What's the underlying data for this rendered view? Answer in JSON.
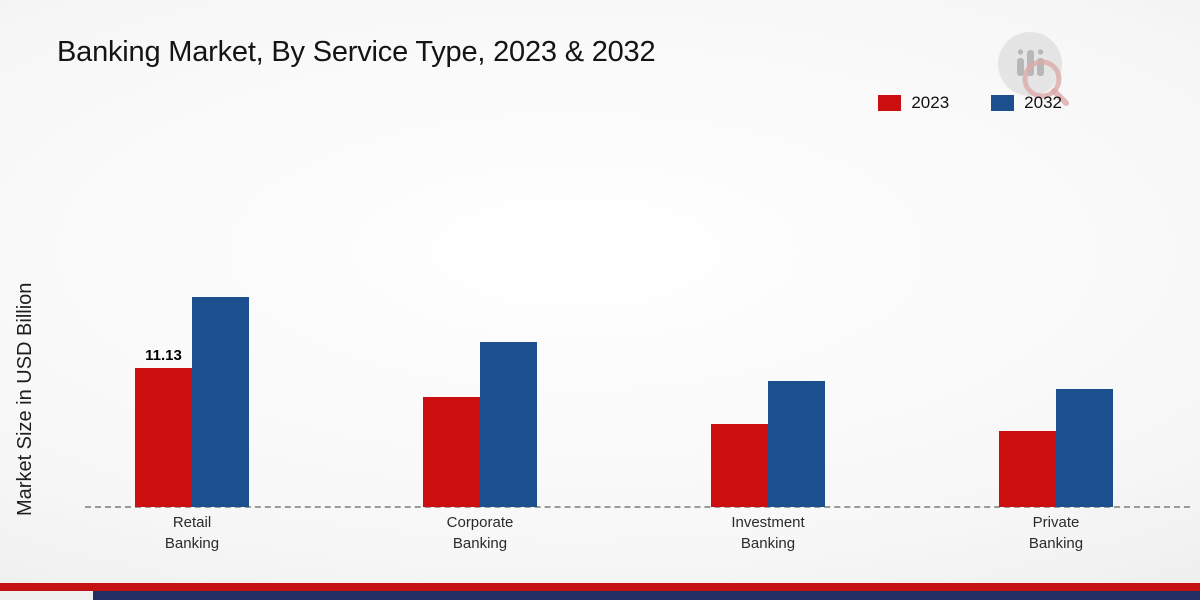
{
  "page": {
    "title": "Banking Market, By Service Type, 2023 & 2032"
  },
  "brand": {
    "red": "#c41111",
    "navy": "#232f62",
    "logo": "market-research-watermark"
  },
  "chart_data": {
    "type": "bar",
    "title": "Banking Market, By Service Type, 2023 & 2032",
    "xlabel": "",
    "ylabel": "Market Size in USD Billion",
    "ylim": [
      0,
      21
    ],
    "grid": false,
    "legend_position": "top-right",
    "categories": [
      {
        "id": "retail-banking",
        "line1": "Retail",
        "line2": "Banking"
      },
      {
        "id": "corporate-banking",
        "line1": "Corporate",
        "line2": "Banking"
      },
      {
        "id": "investment-banking",
        "line1": "Investment",
        "line2": "Banking"
      },
      {
        "id": "private-banking",
        "line1": "Private",
        "line2": "Banking"
      }
    ],
    "series": [
      {
        "name": "2023",
        "color": "#cc0e0e",
        "values": [
          11.13,
          8.8,
          6.6,
          6.1
        ],
        "value_labels": [
          "11.13",
          null,
          null,
          null
        ]
      },
      {
        "name": "2032",
        "color": "#1b4f8e",
        "values": [
          16.8,
          13.2,
          10.1,
          9.4
        ],
        "value_labels": [
          null,
          null,
          null,
          null
        ]
      }
    ]
  }
}
